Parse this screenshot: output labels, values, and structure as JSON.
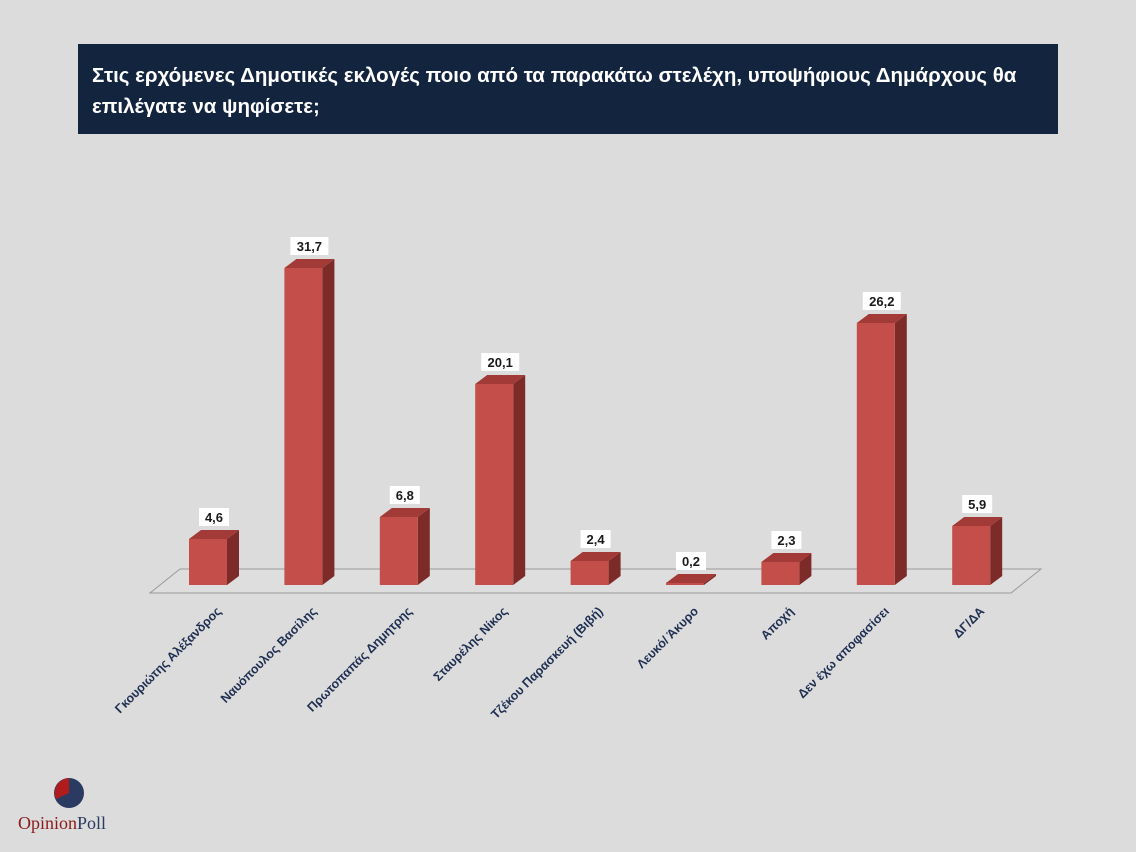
{
  "header": {
    "title": "Στις ερχόμενες Δημοτικές εκλογές ποιο από τα παρακάτω στελέχη, υποψήφιους Δημάρχους θα επιλέγατε να ψηφίσετε;"
  },
  "chart_data": {
    "type": "bar",
    "categories": [
      "Γκουριώτης Αλέξανδρος",
      "Ναυόπουλος Βασίλης",
      "Πρωτοπαπάς Δημητρης",
      "Σταυρέλης Νίκος",
      "Τζέκου Παρασκευή (Βιβή)",
      "Λευκό/ Άκυρο",
      "Αποχή",
      "Δεν έχω αποφασίσει",
      "ΔΓ/ΔΑ"
    ],
    "values": [
      4.6,
      31.7,
      6.8,
      20.1,
      2.4,
      0.2,
      2.3,
      26.2,
      5.9
    ],
    "value_labels": [
      "4,6",
      "31,7",
      "6,8",
      "20,1",
      "2,4",
      "0,2",
      "2,3",
      "26,2",
      "5,9"
    ],
    "ylim": [
      0,
      31.7
    ],
    "grid": false,
    "legend": "none",
    "colors": {
      "bar_front": "#c44e4a",
      "bar_side": "#7d2b29",
      "bar_top": "#a23a37"
    }
  },
  "logo": {
    "text_part1": "Opinion",
    "text_part2": "Poll",
    "colors": {
      "red": "#b01c1c",
      "navy": "#2b3a60"
    }
  }
}
